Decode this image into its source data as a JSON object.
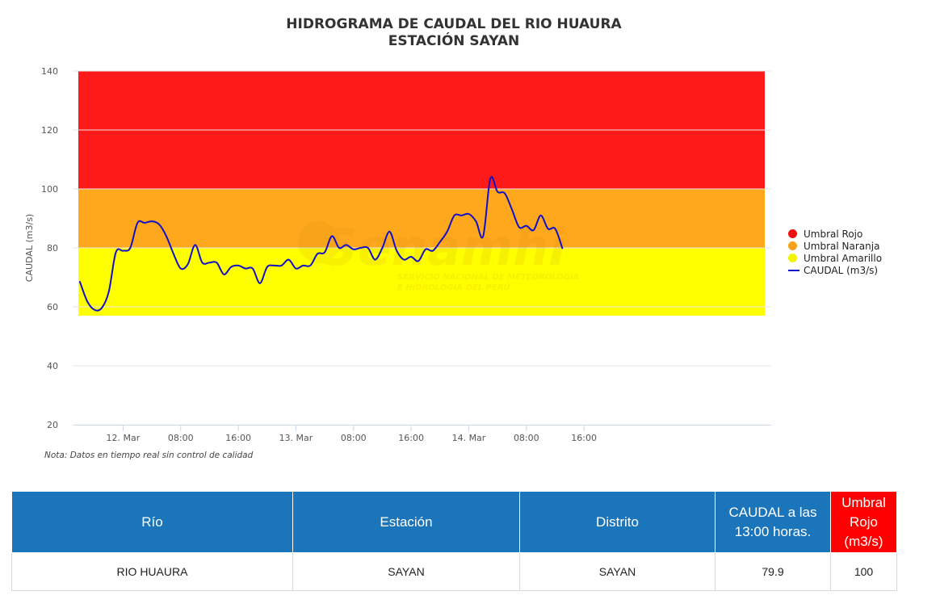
{
  "chart_data": {
    "type": "line",
    "title": "HIDROGRAMA DE CAUDAL DEL RIO HUAURA",
    "subtitle": "ESTACIÓN SAYAN",
    "xlabel": "",
    "ylabel": "CAUDAL (m3/s)",
    "ylim": [
      20,
      140
    ],
    "yticks": [
      "20",
      "40",
      "60",
      "80",
      "100",
      "120",
      "140"
    ],
    "x_range_hours": [
      -7,
      90
    ],
    "x_ticks": [
      {
        "label": "12. Mar",
        "hour": 0
      },
      {
        "label": "08:00",
        "hour": 8
      },
      {
        "label": "16:00",
        "hour": 16
      },
      {
        "label": "13. Mar",
        "hour": 24
      },
      {
        "label": "08:00",
        "hour": 32
      },
      {
        "label": "16:00",
        "hour": 40
      },
      {
        "label": "14. Mar",
        "hour": 48
      },
      {
        "label": "08:00",
        "hour": 56
      },
      {
        "label": "16:00",
        "hour": 64
      }
    ],
    "grid": true,
    "legend_position": "right",
    "bands": [
      {
        "name": "Umbral Rojo",
        "from": 100,
        "to": 140,
        "color": "#ff1a1a",
        "legend_color": "#ee1111"
      },
      {
        "name": "Umbral Naranja",
        "from": 80,
        "to": 100,
        "color": "#ffa81e",
        "legend_color": "#f7a21b"
      },
      {
        "name": "Umbral Amarillo",
        "from": 57,
        "to": 80,
        "color": "#ffff00",
        "legend_color": "#f4f400"
      }
    ],
    "series": [
      {
        "name": "CAUDAL (m3/s)",
        "color": "#1010c8",
        "points": [
          [
            -6,
            68.5
          ],
          [
            -5,
            62
          ],
          [
            -4,
            59
          ],
          [
            -3,
            59.5
          ],
          [
            -2,
            65
          ],
          [
            -1,
            78.5
          ],
          [
            0,
            79
          ],
          [
            1,
            80
          ],
          [
            2,
            88.5
          ],
          [
            3,
            88.5
          ],
          [
            4,
            89
          ],
          [
            5,
            88
          ],
          [
            6,
            84
          ],
          [
            7,
            78
          ],
          [
            8,
            73
          ],
          [
            9,
            74.5
          ],
          [
            10,
            81
          ],
          [
            11,
            75
          ],
          [
            12,
            75
          ],
          [
            13,
            75
          ],
          [
            14,
            71
          ],
          [
            15,
            73.5
          ],
          [
            16,
            74
          ],
          [
            17,
            73
          ],
          [
            18,
            73
          ],
          [
            19,
            68
          ],
          [
            20,
            73.5
          ],
          [
            21,
            74
          ],
          [
            22,
            74
          ],
          [
            23,
            76
          ],
          [
            24,
            73
          ],
          [
            25,
            74
          ],
          [
            26,
            74
          ],
          [
            27,
            78
          ],
          [
            28,
            78.5
          ],
          [
            29,
            84
          ],
          [
            30,
            80
          ],
          [
            31,
            81
          ],
          [
            32,
            79.5
          ],
          [
            33,
            80
          ],
          [
            34,
            80
          ],
          [
            35,
            76
          ],
          [
            36,
            80
          ],
          [
            37,
            85.5
          ],
          [
            38,
            79
          ],
          [
            39,
            76
          ],
          [
            40,
            77
          ],
          [
            41,
            75.5
          ],
          [
            42,
            79.5
          ],
          [
            43,
            79
          ],
          [
            44,
            82
          ],
          [
            45,
            85.5
          ],
          [
            46,
            91
          ],
          [
            47,
            91
          ],
          [
            48,
            91.5
          ],
          [
            49,
            89
          ],
          [
            50,
            84
          ],
          [
            51,
            103.5
          ],
          [
            52,
            99
          ],
          [
            53,
            98.5
          ],
          [
            54,
            93
          ],
          [
            55,
            87
          ],
          [
            56,
            87.5
          ],
          [
            57,
            86
          ],
          [
            58,
            91
          ],
          [
            59,
            86.5
          ],
          [
            60,
            86.5
          ],
          [
            61,
            79.9
          ]
        ]
      }
    ]
  },
  "watermark": {
    "brand": "Senamhi",
    "line1": "SERVICIO NACIONAL DE METEOROLOGÍA",
    "line2": "E HIDROLOGÍA DEL PERÚ"
  },
  "note": "Nota: Datos en tiempo real sin control de calidad",
  "table": {
    "headers": [
      "Río",
      "Estación",
      "Distrito",
      "CAUDAL a las 13:00 horas.",
      "Umbral Rojo (m3/s)"
    ],
    "row": [
      "RIO HUAURA",
      "SAYAN",
      "SAYAN",
      "79.9",
      "100"
    ]
  }
}
